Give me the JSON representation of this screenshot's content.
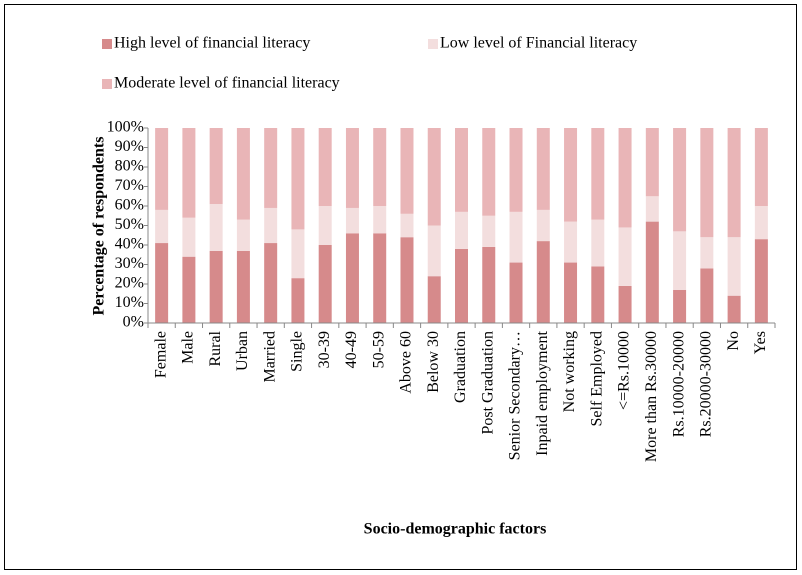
{
  "chart_data": {
    "type": "stacked_bar_100",
    "x_label": "Socio-demographic factors",
    "y_label": "Percentage of respondents",
    "categories": [
      "Female",
      "Male",
      "Rural",
      "Urban",
      "Married",
      "Single",
      "30-39",
      "40-49",
      "50-59",
      "Above 60",
      "Below 30",
      "Graduation",
      "Post Graduation",
      "Senior Secondary…",
      "Inpaid employment",
      "Not working",
      "Self Employed",
      "<=Rs.10000",
      "More than Rs.30000",
      "Rs.10000-20000",
      "Rs.20000-30000",
      "No",
      "Yes"
    ],
    "series": [
      {
        "name": "High level of financial literacy",
        "color": "#d68a8b",
        "values": [
          41,
          34,
          37,
          37,
          41,
          23,
          40,
          46,
          46,
          44,
          24,
          38,
          39,
          31,
          42,
          31,
          29,
          19,
          52,
          17,
          28,
          14,
          43
        ]
      },
      {
        "name": "Low level of Financial literacy",
        "color": "#f3dede",
        "values": [
          17,
          20,
          24,
          16,
          18,
          25,
          20,
          13,
          14,
          12,
          26,
          19,
          16,
          26,
          16,
          21,
          24,
          30,
          13,
          30,
          16,
          30,
          17
        ]
      },
      {
        "name": "Moderate level of financial literacy",
        "color": "#e9b5b7",
        "values": [
          42,
          46,
          39,
          47,
          41,
          52,
          40,
          41,
          40,
          44,
          50,
          43,
          45,
          43,
          42,
          48,
          47,
          51,
          35,
          53,
          56,
          56,
          40
        ]
      }
    ],
    "ylim": [
      0,
      100
    ],
    "yticks": [
      {
        "value": 0,
        "label": "0%"
      },
      {
        "value": 10,
        "label": "10%"
      },
      {
        "value": 20,
        "label": "20%"
      },
      {
        "value": 30,
        "label": "30%"
      },
      {
        "value": 40,
        "label": "40%"
      },
      {
        "value": 50,
        "label": "50%"
      },
      {
        "value": 60,
        "label": "60%"
      },
      {
        "value": 70,
        "label": "70%"
      },
      {
        "value": 80,
        "label": "80%"
      },
      {
        "value": 90,
        "label": "90%"
      },
      {
        "value": 100,
        "label": "100%"
      }
    ],
    "legend": "top"
  }
}
